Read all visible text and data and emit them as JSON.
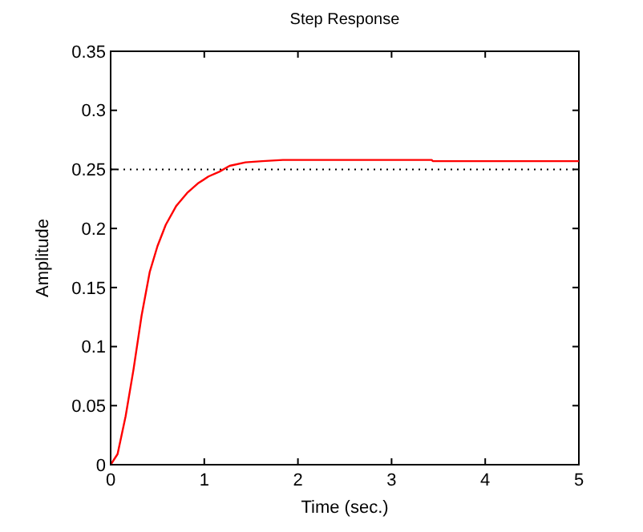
{
  "chart_data": {
    "type": "line",
    "title": "Step Response",
    "xlabel": "Time (sec.)",
    "ylabel": "Amplitude",
    "x": [
      0,
      0.074,
      0.16,
      0.245,
      0.33,
      0.417,
      0.5,
      0.588,
      0.7,
      0.816,
      0.93,
      1.045,
      1.16,
      1.27,
      1.44,
      1.62,
      1.84,
      3.43,
      3.44,
      5
    ],
    "series": [
      {
        "color": "#ff0000",
        "values": [
          0,
          0.009,
          0.041,
          0.081,
          0.126,
          0.163,
          0.185,
          0.203,
          0.219,
          0.23,
          0.238,
          0.244,
          0.248,
          0.253,
          0.256,
          0.257,
          0.258,
          0.258,
          0.257,
          0.257
        ]
      }
    ],
    "xlim": [
      0,
      5
    ],
    "ylim": [
      0,
      0.35
    ],
    "xticks": [
      0,
      1,
      2,
      3,
      4,
      5
    ],
    "yticks": [
      0,
      0.05,
      0.1,
      0.15,
      0.2,
      0.25,
      0.3,
      0.35
    ],
    "ref_lines": [
      {
        "axis": "y",
        "value": 0.25,
        "color": "#000000",
        "line_style": "dotted"
      }
    ],
    "grid": false,
    "marker": "none",
    "line_style": "solid"
  }
}
